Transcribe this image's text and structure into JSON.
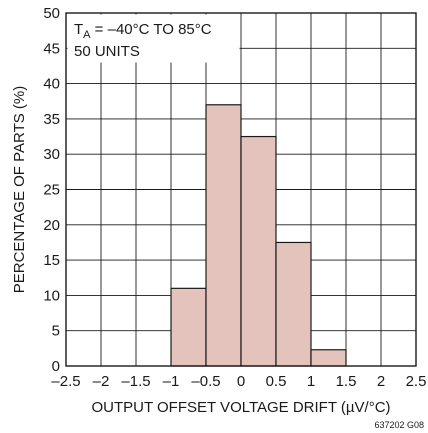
{
  "chart_data": {
    "type": "bar",
    "bins": [
      {
        "from": -1.0,
        "to": -0.5,
        "value": 11
      },
      {
        "from": -0.5,
        "to": 0.0,
        "value": 37
      },
      {
        "from": 0.0,
        "to": 0.5,
        "value": 32.5
      },
      {
        "from": 0.5,
        "to": 1.0,
        "value": 17.5
      },
      {
        "from": 1.0,
        "to": 1.5,
        "value": 2.3
      }
    ],
    "title": "",
    "xlabel": "OUTPUT OFFSET VOLTAGE DRIFT (µV/°C)",
    "ylabel": "PERCENTAGE OF PARTS (%)",
    "xlim": [
      -2.5,
      2.5
    ],
    "ylim": [
      0,
      50
    ],
    "x_ticks": [
      "–2.5",
      "–2",
      "–1.5",
      "–1",
      "–0.5",
      "0",
      "0.5",
      "1",
      "1.5",
      "2",
      "2.5"
    ],
    "y_ticks": [
      "0",
      "5",
      "10",
      "15",
      "20",
      "25",
      "30",
      "35",
      "40",
      "45",
      "50"
    ],
    "grid": true,
    "bar_fill": "#e4c3bd",
    "bar_stroke": "#1a1a1a",
    "annotation": {
      "line1_prefix": "T",
      "line1_subscript": "A",
      "line1_rest": " = –40°C TO 85°C",
      "line2": "50 UNITS"
    },
    "figure_code": "637202 G08"
  }
}
